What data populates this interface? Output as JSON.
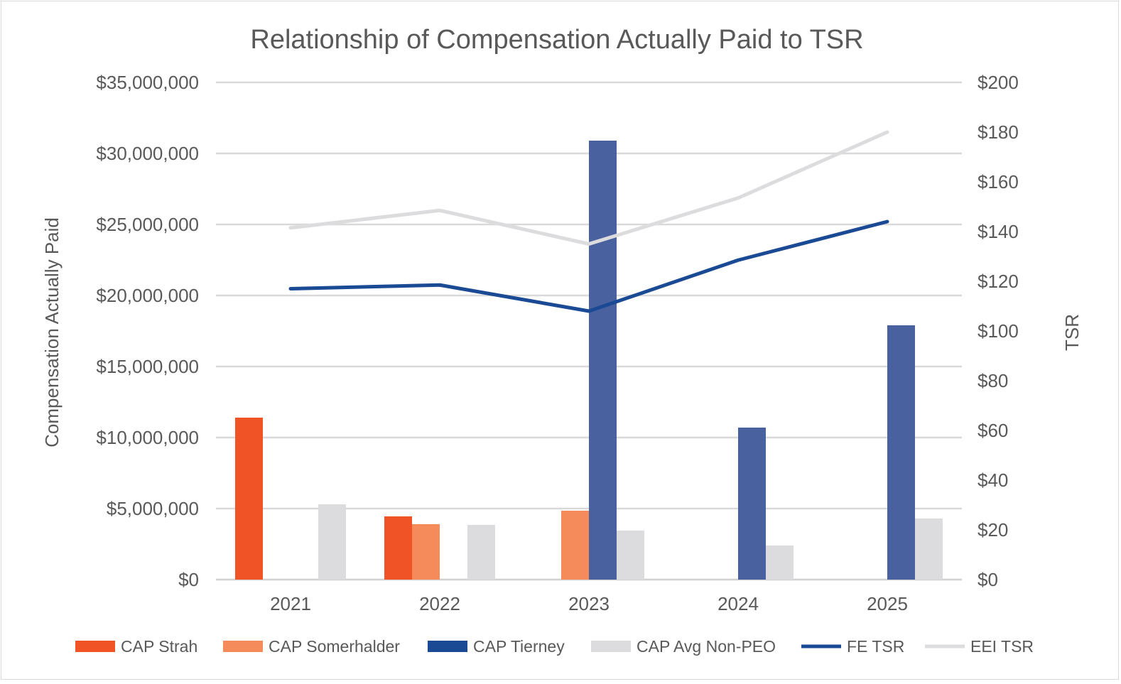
{
  "chart_data": {
    "type": "bar",
    "title": "Relationship of  Compensation Actually Paid to TSR",
    "categories": [
      "2021",
      "2022",
      "2023",
      "2024",
      "2025"
    ],
    "y_left": {
      "label": "Compensation Actually Paid",
      "range": [
        0,
        35000000
      ],
      "ticks": [
        0,
        5000000,
        10000000,
        15000000,
        20000000,
        25000000,
        30000000,
        35000000
      ],
      "tick_labels": [
        "$0",
        "$5,000,000",
        "$10,000,000",
        "$15,000,000",
        "$20,000,000",
        "$25,000,000",
        "$30,000,000",
        "$35,000,000"
      ]
    },
    "y_right": {
      "label": "TSR",
      "range": [
        0,
        200
      ],
      "ticks": [
        0,
        20,
        40,
        60,
        80,
        100,
        120,
        140,
        160,
        180,
        200
      ],
      "tick_labels": [
        "$0",
        "$20",
        "$40",
        "$60",
        "$80",
        "$100",
        "$120",
        "$140",
        "$160",
        "$180",
        "$200"
      ]
    },
    "grid": true,
    "legend_position": "bottom",
    "series": [
      {
        "name": "CAP Strah",
        "type": "bar",
        "axis": "left",
        "color": "#ef5326",
        "values": [
          11400000,
          4450000,
          null,
          null,
          null
        ]
      },
      {
        "name": "CAP Somerhalder",
        "type": "bar",
        "axis": "left",
        "color": "#f58a5a",
        "values": [
          null,
          3900000,
          4850000,
          null,
          null
        ]
      },
      {
        "name": "CAP Tierney",
        "type": "bar",
        "axis": "left",
        "color": "#4a61a0",
        "legend_color": "#1b4a94",
        "values": [
          null,
          null,
          30900000,
          10700000,
          17900000
        ]
      },
      {
        "name": "CAP Avg Non-PEO",
        "type": "bar",
        "axis": "left",
        "color": "#dcdcde",
        "values": [
          5300000,
          3850000,
          3450000,
          2400000,
          4300000
        ]
      },
      {
        "name": "FE TSR",
        "type": "line",
        "axis": "right",
        "color": "#1b4a94",
        "values": [
          117,
          118.5,
          108,
          128.5,
          144
        ]
      },
      {
        "name": "EEI TSR",
        "type": "line",
        "axis": "right",
        "color": "#dcdcde",
        "values": [
          141.5,
          148.5,
          135,
          153.5,
          180
        ]
      }
    ]
  }
}
